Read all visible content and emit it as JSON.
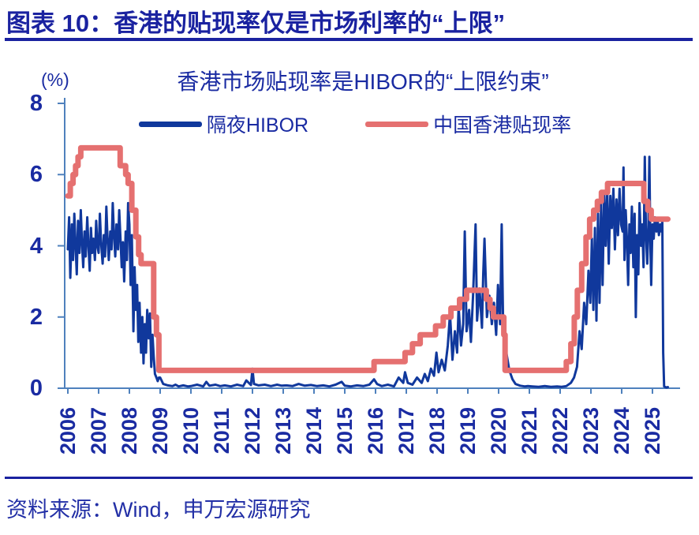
{
  "header": {
    "title": "图表 10：香港的贴现率仅是市场利率的“上限”"
  },
  "footer": {
    "source": "资料来源：Wind，申万宏源研究"
  },
  "colors": {
    "navy_text": "#1a2ba2",
    "title_navy": "#1a22a0",
    "axis_blue": "#4f81bd",
    "hibor_blue": "#10389c",
    "discount_red": "#e57070"
  },
  "chart_data": {
    "type": "line",
    "title": "香港市场贴现率是HIBOR的“上限约束”",
    "unit_label": "(%)",
    "xlabel": "",
    "ylabel": "(%)",
    "ylim": [
      0,
      8
    ],
    "yticks": [
      0,
      2,
      4,
      6,
      8
    ],
    "xlim": [
      2006.0,
      2025.5
    ],
    "xticks": [
      2006,
      2007,
      2008,
      2009,
      2010,
      2011,
      2012,
      2013,
      2014,
      2015,
      2016,
      2017,
      2018,
      2019,
      2020,
      2021,
      2022,
      2023,
      2024,
      2025
    ],
    "grid": false,
    "legend_position": "top",
    "series": [
      {
        "name": "隔夜HIBOR",
        "type": "line",
        "color": "#10389c",
        "width": 3,
        "points": [
          [
            2006.0,
            3.9
          ],
          [
            2006.04,
            4.8
          ],
          [
            2006.08,
            3.1
          ],
          [
            2006.13,
            4.6
          ],
          [
            2006.17,
            3.6
          ],
          [
            2006.21,
            4.9
          ],
          [
            2006.25,
            4.0
          ],
          [
            2006.29,
            3.2
          ],
          [
            2006.33,
            4.7
          ],
          [
            2006.38,
            3.8
          ],
          [
            2006.42,
            5.0
          ],
          [
            2006.46,
            4.1
          ],
          [
            2006.5,
            3.4
          ],
          [
            2006.54,
            4.4
          ],
          [
            2006.58,
            3.7
          ],
          [
            2006.63,
            4.8
          ],
          [
            2006.67,
            4.0
          ],
          [
            2006.71,
            3.3
          ],
          [
            2006.75,
            4.5
          ],
          [
            2006.79,
            3.8
          ],
          [
            2006.83,
            4.2
          ],
          [
            2006.88,
            3.6
          ],
          [
            2006.92,
            4.7
          ],
          [
            2006.96,
            4.0
          ],
          [
            2007.0,
            3.8
          ],
          [
            2007.04,
            4.9
          ],
          [
            2007.08,
            4.1
          ],
          [
            2007.13,
            3.5
          ],
          [
            2007.17,
            4.3
          ],
          [
            2007.21,
            3.7
          ],
          [
            2007.25,
            5.1
          ],
          [
            2007.29,
            4.2
          ],
          [
            2007.33,
            3.6
          ],
          [
            2007.38,
            4.4
          ],
          [
            2007.42,
            3.9
          ],
          [
            2007.46,
            5.2
          ],
          [
            2007.5,
            4.3
          ],
          [
            2007.54,
            3.7
          ],
          [
            2007.58,
            4.6
          ],
          [
            2007.63,
            3.9
          ],
          [
            2007.67,
            5.0
          ],
          [
            2007.71,
            4.2
          ],
          [
            2007.75,
            3.4
          ],
          [
            2007.79,
            4.1
          ],
          [
            2007.83,
            3.0
          ],
          [
            2007.88,
            4.4
          ],
          [
            2007.92,
            3.6
          ],
          [
            2007.96,
            5.2
          ],
          [
            2008.0,
            4.6
          ],
          [
            2008.04,
            2.9
          ],
          [
            2008.08,
            4.3
          ],
          [
            2008.13,
            1.6
          ],
          [
            2008.17,
            3.4
          ],
          [
            2008.21,
            2.2
          ],
          [
            2008.25,
            2.9
          ],
          [
            2008.29,
            1.3
          ],
          [
            2008.33,
            2.4
          ],
          [
            2008.38,
            1.0
          ],
          [
            2008.42,
            2.0
          ],
          [
            2008.46,
            0.7
          ],
          [
            2008.5,
            1.8
          ],
          [
            2008.54,
            1.0
          ],
          [
            2008.58,
            2.2
          ],
          [
            2008.63,
            1.4
          ],
          [
            2008.67,
            2.1
          ],
          [
            2008.71,
            0.6
          ],
          [
            2008.75,
            1.5
          ],
          [
            2008.79,
            0.9
          ],
          [
            2008.83,
            0.4
          ],
          [
            2008.88,
            0.3
          ],
          [
            2008.92,
            0.2
          ],
          [
            2008.96,
            0.3
          ],
          [
            2009.0,
            0.3
          ],
          [
            2009.1,
            0.12
          ],
          [
            2009.25,
            0.08
          ],
          [
            2009.4,
            0.06
          ],
          [
            2009.5,
            0.1
          ],
          [
            2009.6,
            0.05
          ],
          [
            2009.75,
            0.08
          ],
          [
            2009.9,
            0.05
          ],
          [
            2010.0,
            0.06
          ],
          [
            2010.2,
            0.1
          ],
          [
            2010.4,
            0.05
          ],
          [
            2010.5,
            0.18
          ],
          [
            2010.6,
            0.07
          ],
          [
            2010.8,
            0.1
          ],
          [
            2010.95,
            0.06
          ],
          [
            2011.1,
            0.08
          ],
          [
            2011.3,
            0.05
          ],
          [
            2011.5,
            0.1
          ],
          [
            2011.7,
            0.06
          ],
          [
            2011.8,
            0.22
          ],
          [
            2011.95,
            0.09
          ],
          [
            2012.0,
            0.55
          ],
          [
            2012.05,
            0.12
          ],
          [
            2012.2,
            0.08
          ],
          [
            2012.4,
            0.1
          ],
          [
            2012.6,
            0.06
          ],
          [
            2012.8,
            0.1
          ],
          [
            2012.95,
            0.07
          ],
          [
            2013.1,
            0.08
          ],
          [
            2013.3,
            0.06
          ],
          [
            2013.5,
            0.12
          ],
          [
            2013.7,
            0.07
          ],
          [
            2013.9,
            0.09
          ],
          [
            2014.1,
            0.06
          ],
          [
            2014.3,
            0.08
          ],
          [
            2014.5,
            0.05
          ],
          [
            2014.7,
            0.1
          ],
          [
            2014.9,
            0.18
          ],
          [
            2015.0,
            0.07
          ],
          [
            2015.2,
            0.05
          ],
          [
            2015.4,
            0.08
          ],
          [
            2015.6,
            0.06
          ],
          [
            2015.8,
            0.1
          ],
          [
            2015.95,
            0.25
          ],
          [
            2016.05,
            0.12
          ],
          [
            2016.2,
            0.06
          ],
          [
            2016.4,
            0.1
          ],
          [
            2016.6,
            0.05
          ],
          [
            2016.75,
            0.3
          ],
          [
            2016.9,
            0.15
          ],
          [
            2016.96,
            0.45
          ],
          [
            2017.05,
            0.15
          ],
          [
            2017.2,
            0.1
          ],
          [
            2017.35,
            0.3
          ],
          [
            2017.5,
            0.15
          ],
          [
            2017.6,
            0.4
          ],
          [
            2017.7,
            0.2
          ],
          [
            2017.8,
            0.55
          ],
          [
            2017.9,
            0.35
          ],
          [
            2017.98,
            1.0
          ],
          [
            2018.05,
            0.45
          ],
          [
            2018.15,
            0.8
          ],
          [
            2018.25,
            0.5
          ],
          [
            2018.35,
            1.2
          ],
          [
            2018.42,
            2.1
          ],
          [
            2018.5,
            0.8
          ],
          [
            2018.58,
            1.6
          ],
          [
            2018.65,
            1.0
          ],
          [
            2018.7,
            2.3
          ],
          [
            2018.78,
            1.2
          ],
          [
            2018.85,
            1.8
          ],
          [
            2018.9,
            4.4
          ],
          [
            2018.96,
            1.6
          ],
          [
            2019.04,
            2.2
          ],
          [
            2019.1,
            1.3
          ],
          [
            2019.17,
            2.6
          ],
          [
            2019.25,
            4.6
          ],
          [
            2019.3,
            1.9
          ],
          [
            2019.38,
            2.8
          ],
          [
            2019.46,
            1.7
          ],
          [
            2019.5,
            3.2
          ],
          [
            2019.54,
            4.2
          ],
          [
            2019.62,
            2.0
          ],
          [
            2019.7,
            2.6
          ],
          [
            2019.78,
            1.8
          ],
          [
            2019.85,
            2.4
          ],
          [
            2019.92,
            1.5
          ],
          [
            2019.98,
            2.9
          ],
          [
            2020.05,
            1.8
          ],
          [
            2020.1,
            4.6
          ],
          [
            2020.15,
            1.5
          ],
          [
            2020.25,
            1.0
          ],
          [
            2020.35,
            0.5
          ],
          [
            2020.45,
            0.25
          ],
          [
            2020.55,
            0.12
          ],
          [
            2020.7,
            0.07
          ],
          [
            2020.85,
            0.05
          ],
          [
            2020.95,
            0.06
          ],
          [
            2021.1,
            0.05
          ],
          [
            2021.3,
            0.04
          ],
          [
            2021.5,
            0.06
          ],
          [
            2021.7,
            0.04
          ],
          [
            2021.9,
            0.05
          ],
          [
            2022.05,
            0.04
          ],
          [
            2022.2,
            0.06
          ],
          [
            2022.35,
            0.15
          ],
          [
            2022.45,
            0.3
          ],
          [
            2022.55,
            0.6
          ],
          [
            2022.63,
            1.6
          ],
          [
            2022.7,
            1.1
          ],
          [
            2022.78,
            2.4
          ],
          [
            2022.85,
            1.8
          ],
          [
            2022.92,
            3.3
          ],
          [
            2022.98,
            2.4
          ],
          [
            2023.03,
            4.2
          ],
          [
            2023.08,
            2.2
          ],
          [
            2023.13,
            4.5
          ],
          [
            2023.18,
            1.9
          ],
          [
            2023.23,
            4.9
          ],
          [
            2023.28,
            2.4
          ],
          [
            2023.33,
            5.2
          ],
          [
            2023.38,
            2.9
          ],
          [
            2023.43,
            5.5
          ],
          [
            2023.48,
            4.0
          ],
          [
            2023.53,
            5.6
          ],
          [
            2023.58,
            3.5
          ],
          [
            2023.63,
            5.4
          ],
          [
            2023.68,
            4.5
          ],
          [
            2023.73,
            5.6
          ],
          [
            2023.78,
            3.9
          ],
          [
            2023.83,
            5.3
          ],
          [
            2023.88,
            4.3
          ],
          [
            2023.93,
            5.6
          ],
          [
            2023.98,
            4.6
          ],
          [
            2024.03,
            4.4
          ],
          [
            2024.06,
            6.2
          ],
          [
            2024.09,
            3.6
          ],
          [
            2024.13,
            5.0
          ],
          [
            2024.17,
            4.2
          ],
          [
            2024.21,
            2.9
          ],
          [
            2024.25,
            4.6
          ],
          [
            2024.29,
            3.8
          ],
          [
            2024.33,
            5.1
          ],
          [
            2024.38,
            3.4
          ],
          [
            2024.42,
            4.9
          ],
          [
            2024.46,
            2.0
          ],
          [
            2024.5,
            4.3
          ],
          [
            2024.54,
            3.2
          ],
          [
            2024.58,
            5.2
          ],
          [
            2024.63,
            4.0
          ],
          [
            2024.67,
            4.6
          ],
          [
            2024.71,
            3.4
          ],
          [
            2024.75,
            6.5
          ],
          [
            2024.79,
            4.3
          ],
          [
            2024.83,
            3.5
          ],
          [
            2024.87,
            4.6
          ],
          [
            2024.9,
            6.5
          ],
          [
            2024.93,
            4.1
          ],
          [
            2024.96,
            2.9
          ],
          [
            2025.0,
            4.6
          ],
          [
            2025.04,
            4.2
          ],
          [
            2025.08,
            4.8
          ],
          [
            2025.13,
            4.4
          ],
          [
            2025.17,
            4.7
          ],
          [
            2025.21,
            4.3
          ],
          [
            2025.25,
            4.6
          ],
          [
            2025.29,
            4.4
          ],
          [
            2025.32,
            4.7
          ],
          [
            2025.35,
            1.0
          ],
          [
            2025.38,
            0.05
          ],
          [
            2025.42,
            0.03
          ],
          [
            2025.46,
            0.02
          ],
          [
            2025.5,
            0.03
          ]
        ]
      },
      {
        "name": "中国香港贴现率",
        "type": "step",
        "color": "#e57070",
        "width": 7,
        "points": [
          [
            2006.0,
            5.4
          ],
          [
            2006.08,
            5.75
          ],
          [
            2006.17,
            6.0
          ],
          [
            2006.25,
            6.25
          ],
          [
            2006.33,
            6.5
          ],
          [
            2006.42,
            6.75
          ],
          [
            2007.7,
            6.25
          ],
          [
            2007.88,
            6.0
          ],
          [
            2007.96,
            5.75
          ],
          [
            2008.08,
            5.0
          ],
          [
            2008.21,
            4.25
          ],
          [
            2008.3,
            3.75
          ],
          [
            2008.38,
            3.5
          ],
          [
            2008.79,
            2.0
          ],
          [
            2008.88,
            1.5
          ],
          [
            2008.96,
            0.5
          ],
          [
            2015.95,
            0.75
          ],
          [
            2016.96,
            1.0
          ],
          [
            2017.2,
            1.25
          ],
          [
            2017.45,
            1.5
          ],
          [
            2017.95,
            1.75
          ],
          [
            2018.2,
            2.0
          ],
          [
            2018.45,
            2.25
          ],
          [
            2018.73,
            2.5
          ],
          [
            2018.96,
            2.75
          ],
          [
            2019.6,
            2.5
          ],
          [
            2019.72,
            2.25
          ],
          [
            2019.83,
            2.0
          ],
          [
            2020.17,
            1.5
          ],
          [
            2020.21,
            0.5
          ],
          [
            2022.2,
            0.75
          ],
          [
            2022.35,
            1.25
          ],
          [
            2022.46,
            2.0
          ],
          [
            2022.56,
            2.75
          ],
          [
            2022.7,
            3.5
          ],
          [
            2022.84,
            4.25
          ],
          [
            2022.96,
            4.75
          ],
          [
            2023.09,
            5.0
          ],
          [
            2023.21,
            5.25
          ],
          [
            2023.34,
            5.5
          ],
          [
            2023.54,
            5.75
          ],
          [
            2024.72,
            5.25
          ],
          [
            2024.85,
            5.0
          ],
          [
            2024.96,
            4.75
          ],
          [
            2025.5,
            4.75
          ]
        ]
      }
    ]
  }
}
